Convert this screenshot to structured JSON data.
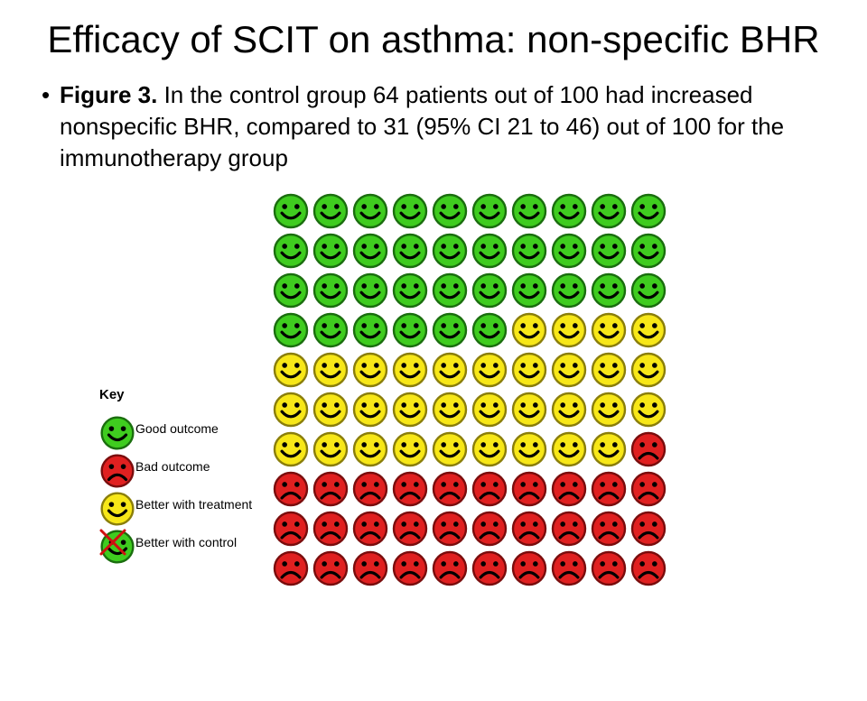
{
  "page": {
    "background": "#ffffff",
    "title_color": "#000000",
    "text_color": "#000000"
  },
  "title": "Efficacy of SCIT on asthma: non-specific BHR",
  "bullet": {
    "lead": "Figure 3. ",
    "rest": "In the control group 64 patients out of 100 had increased nonspecific BHR, compared to 31 (95% CI 21 to 46) out of 100 for the immunotherapy group"
  },
  "faces": {
    "good": {
      "fill": "#3fcc1f",
      "stroke": "#1a6e0e",
      "eye": "#000000",
      "mouth": "#000000",
      "mood": "smile"
    },
    "bad": {
      "fill": "#e02020",
      "stroke": "#7a0d0d",
      "eye": "#000000",
      "mouth": "#000000",
      "mood": "frown"
    },
    "better_treatment": {
      "fill": "#f7e718",
      "stroke": "#8a7e0a",
      "eye": "#000000",
      "mouth": "#000000",
      "mood": "smile"
    },
    "better_control": {
      "fill": "#3fcc1f",
      "stroke": "#1a6e0e",
      "eye": "#000000",
      "mouth": "#000000",
      "mood": "smile",
      "cross_color": "#d01010"
    }
  },
  "legend": {
    "title": "Key",
    "items": [
      {
        "face": "good",
        "label": "Good outcome"
      },
      {
        "face": "bad",
        "label": "Bad outcome"
      },
      {
        "face": "better_treatment",
        "label": "Better with treatment"
      },
      {
        "face": "better_control",
        "label": "Better with control"
      }
    ]
  },
  "grid": {
    "cols": 10,
    "rows": 10,
    "counts": {
      "good": 36,
      "better_treatment": 33,
      "bad": 31
    },
    "layout": [
      [
        "good",
        "good",
        "good",
        "good",
        "good",
        "good",
        "good",
        "good",
        "good",
        "good"
      ],
      [
        "good",
        "good",
        "good",
        "good",
        "good",
        "good",
        "good",
        "good",
        "good",
        "good"
      ],
      [
        "good",
        "good",
        "good",
        "good",
        "good",
        "good",
        "good",
        "good",
        "good",
        "good"
      ],
      [
        "good",
        "good",
        "good",
        "good",
        "good",
        "good",
        "better_treatment",
        "better_treatment",
        "better_treatment",
        "better_treatment"
      ],
      [
        "better_treatment",
        "better_treatment",
        "better_treatment",
        "better_treatment",
        "better_treatment",
        "better_treatment",
        "better_treatment",
        "better_treatment",
        "better_treatment",
        "better_treatment"
      ],
      [
        "better_treatment",
        "better_treatment",
        "better_treatment",
        "better_treatment",
        "better_treatment",
        "better_treatment",
        "better_treatment",
        "better_treatment",
        "better_treatment",
        "better_treatment"
      ],
      [
        "better_treatment",
        "better_treatment",
        "better_treatment",
        "better_treatment",
        "better_treatment",
        "better_treatment",
        "better_treatment",
        "better_treatment",
        "better_treatment",
        "bad"
      ],
      [
        "bad",
        "bad",
        "bad",
        "bad",
        "bad",
        "bad",
        "bad",
        "bad",
        "bad",
        "bad"
      ],
      [
        "bad",
        "bad",
        "bad",
        "bad",
        "bad",
        "bad",
        "bad",
        "bad",
        "bad",
        "bad"
      ],
      [
        "bad",
        "bad",
        "bad",
        "bad",
        "bad",
        "bad",
        "bad",
        "bad",
        "bad",
        "bad"
      ]
    ]
  }
}
